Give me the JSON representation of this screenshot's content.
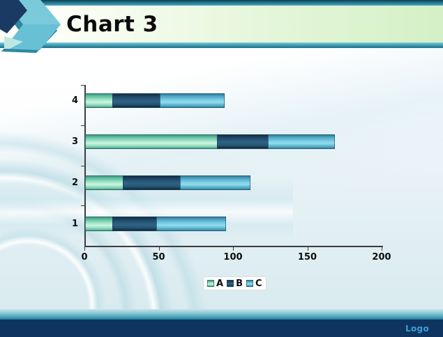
{
  "slide": {
    "title": "Chart 3",
    "footer_logo": "Logo"
  },
  "chart_data": {
    "type": "bar",
    "orientation": "horizontal",
    "stacked": true,
    "title": "",
    "xlabel": "",
    "ylabel": "",
    "categories": [
      "4",
      "3",
      "2",
      "1"
    ],
    "series": [
      {
        "name": "A",
        "values": [
          19,
          89,
          26,
          19
        ]
      },
      {
        "name": "B",
        "values": [
          32,
          35,
          39,
          30
        ]
      },
      {
        "name": "C",
        "values": [
          44,
          45,
          47,
          47
        ]
      }
    ],
    "totals": [
      95,
      169,
      112,
      96
    ],
    "xlim": [
      0,
      200
    ],
    "x_ticks": [
      0,
      50,
      100,
      150,
      200
    ],
    "grid": false,
    "legend": {
      "entries": [
        "A",
        "B",
        "C"
      ],
      "position": "bottom"
    }
  },
  "colors": {
    "series_a": "#7fd3b4",
    "series_b": "#27516e",
    "series_c": "#6cc3dd",
    "accent_teal": "#2f8fa6",
    "footer_navy": "#0d3560",
    "logo_text": "#3f9fd4",
    "header_green": "#d4f0c6"
  }
}
